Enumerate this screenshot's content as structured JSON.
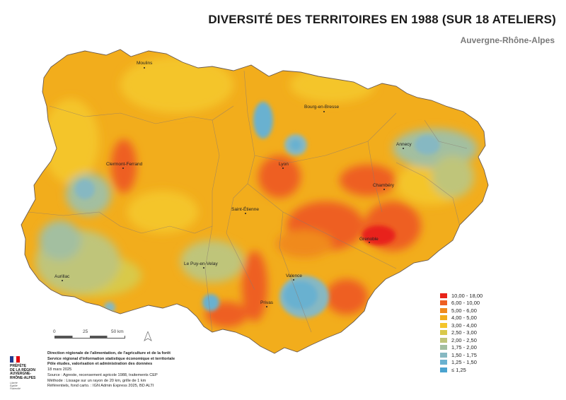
{
  "header": {
    "title": "DIVERSITÉ DES TERRITOIRES EN 1988 (SUR 18 ATELIERS)",
    "subtitle": "Auvergne-Rhône-Alpes"
  },
  "map": {
    "region": "Auvergne-Rhône-Alpes",
    "cities": [
      {
        "name": "Moulins",
        "class": "4,00 - 5,00"
      },
      {
        "name": "Bourg-en-Bresse",
        "class": "4,00 - 5,00"
      },
      {
        "name": "Annecy",
        "class": "2,00 - 2,50"
      },
      {
        "name": "Clermont-Ferrand",
        "class": "5,00 - 6,00"
      },
      {
        "name": "Lyon",
        "class": "6,00 - 10,00"
      },
      {
        "name": "Chambéry",
        "class": "6,00 - 10,00"
      },
      {
        "name": "Saint-Étienne",
        "class": "3,00 - 4,00"
      },
      {
        "name": "Grenoble",
        "class": "10,00 - 18,00"
      },
      {
        "name": "Le Puy-en-Velay",
        "class": "2,00 - 2,50"
      },
      {
        "name": "Aurillac",
        "class": "2,00 - 2,50"
      },
      {
        "name": "Valence",
        "class": "1,50 - 1,75"
      },
      {
        "name": "Privas",
        "class": "6,00 - 10,00"
      }
    ]
  },
  "legend": {
    "items": [
      {
        "label": "10,00 - 18,00",
        "color": "#e8241a"
      },
      {
        "label": "6,00 - 10,00",
        "color": "#ee5f22"
      },
      {
        "label": "5,00 - 6,00",
        "color": "#f08a1d"
      },
      {
        "label": "4,00 - 5,00",
        "color": "#f2ad1c"
      },
      {
        "label": "3,00 - 4,00",
        "color": "#f4c52c"
      },
      {
        "label": "2,50 - 3,00",
        "color": "#d9c94a"
      },
      {
        "label": "2,00 - 2,50",
        "color": "#bfc57a"
      },
      {
        "label": "1,75 - 2,00",
        "color": "#a3bfa0"
      },
      {
        "label": "1,50 - 1,75",
        "color": "#86b8c2"
      },
      {
        "label": "1,25 - 1,50",
        "color": "#69b1d0"
      },
      {
        "label": "≤ 1,25",
        "color": "#4aa3cf"
      }
    ]
  },
  "scalebar": {
    "labels": [
      "0",
      "25",
      "50 km"
    ]
  },
  "logo": {
    "lines": [
      "PRÉFÈTE",
      "DE LA RÉGION",
      "AUVERGNE-",
      "RHÔNE-ALPES"
    ],
    "motto": [
      "Liberté",
      "Égalité",
      "Fraternité"
    ]
  },
  "credits": {
    "line1": "Direction régionale de l'alimentation, de l'agriculture et de la forêt",
    "line2": "Service régional d'information statistique économique et territoriale",
    "line3": "Pôle études, valorisation et administration des données",
    "date": "18 mars 2025",
    "source": "Source : Agreste, recensement agricole 1988, traitements CEP",
    "method": "Méthode : Lissage sur un rayon de 20 km, grille de 1 km",
    "refs": "Référentiels, fond carto. : IGN Admin Express 2025, BD ALTI"
  }
}
